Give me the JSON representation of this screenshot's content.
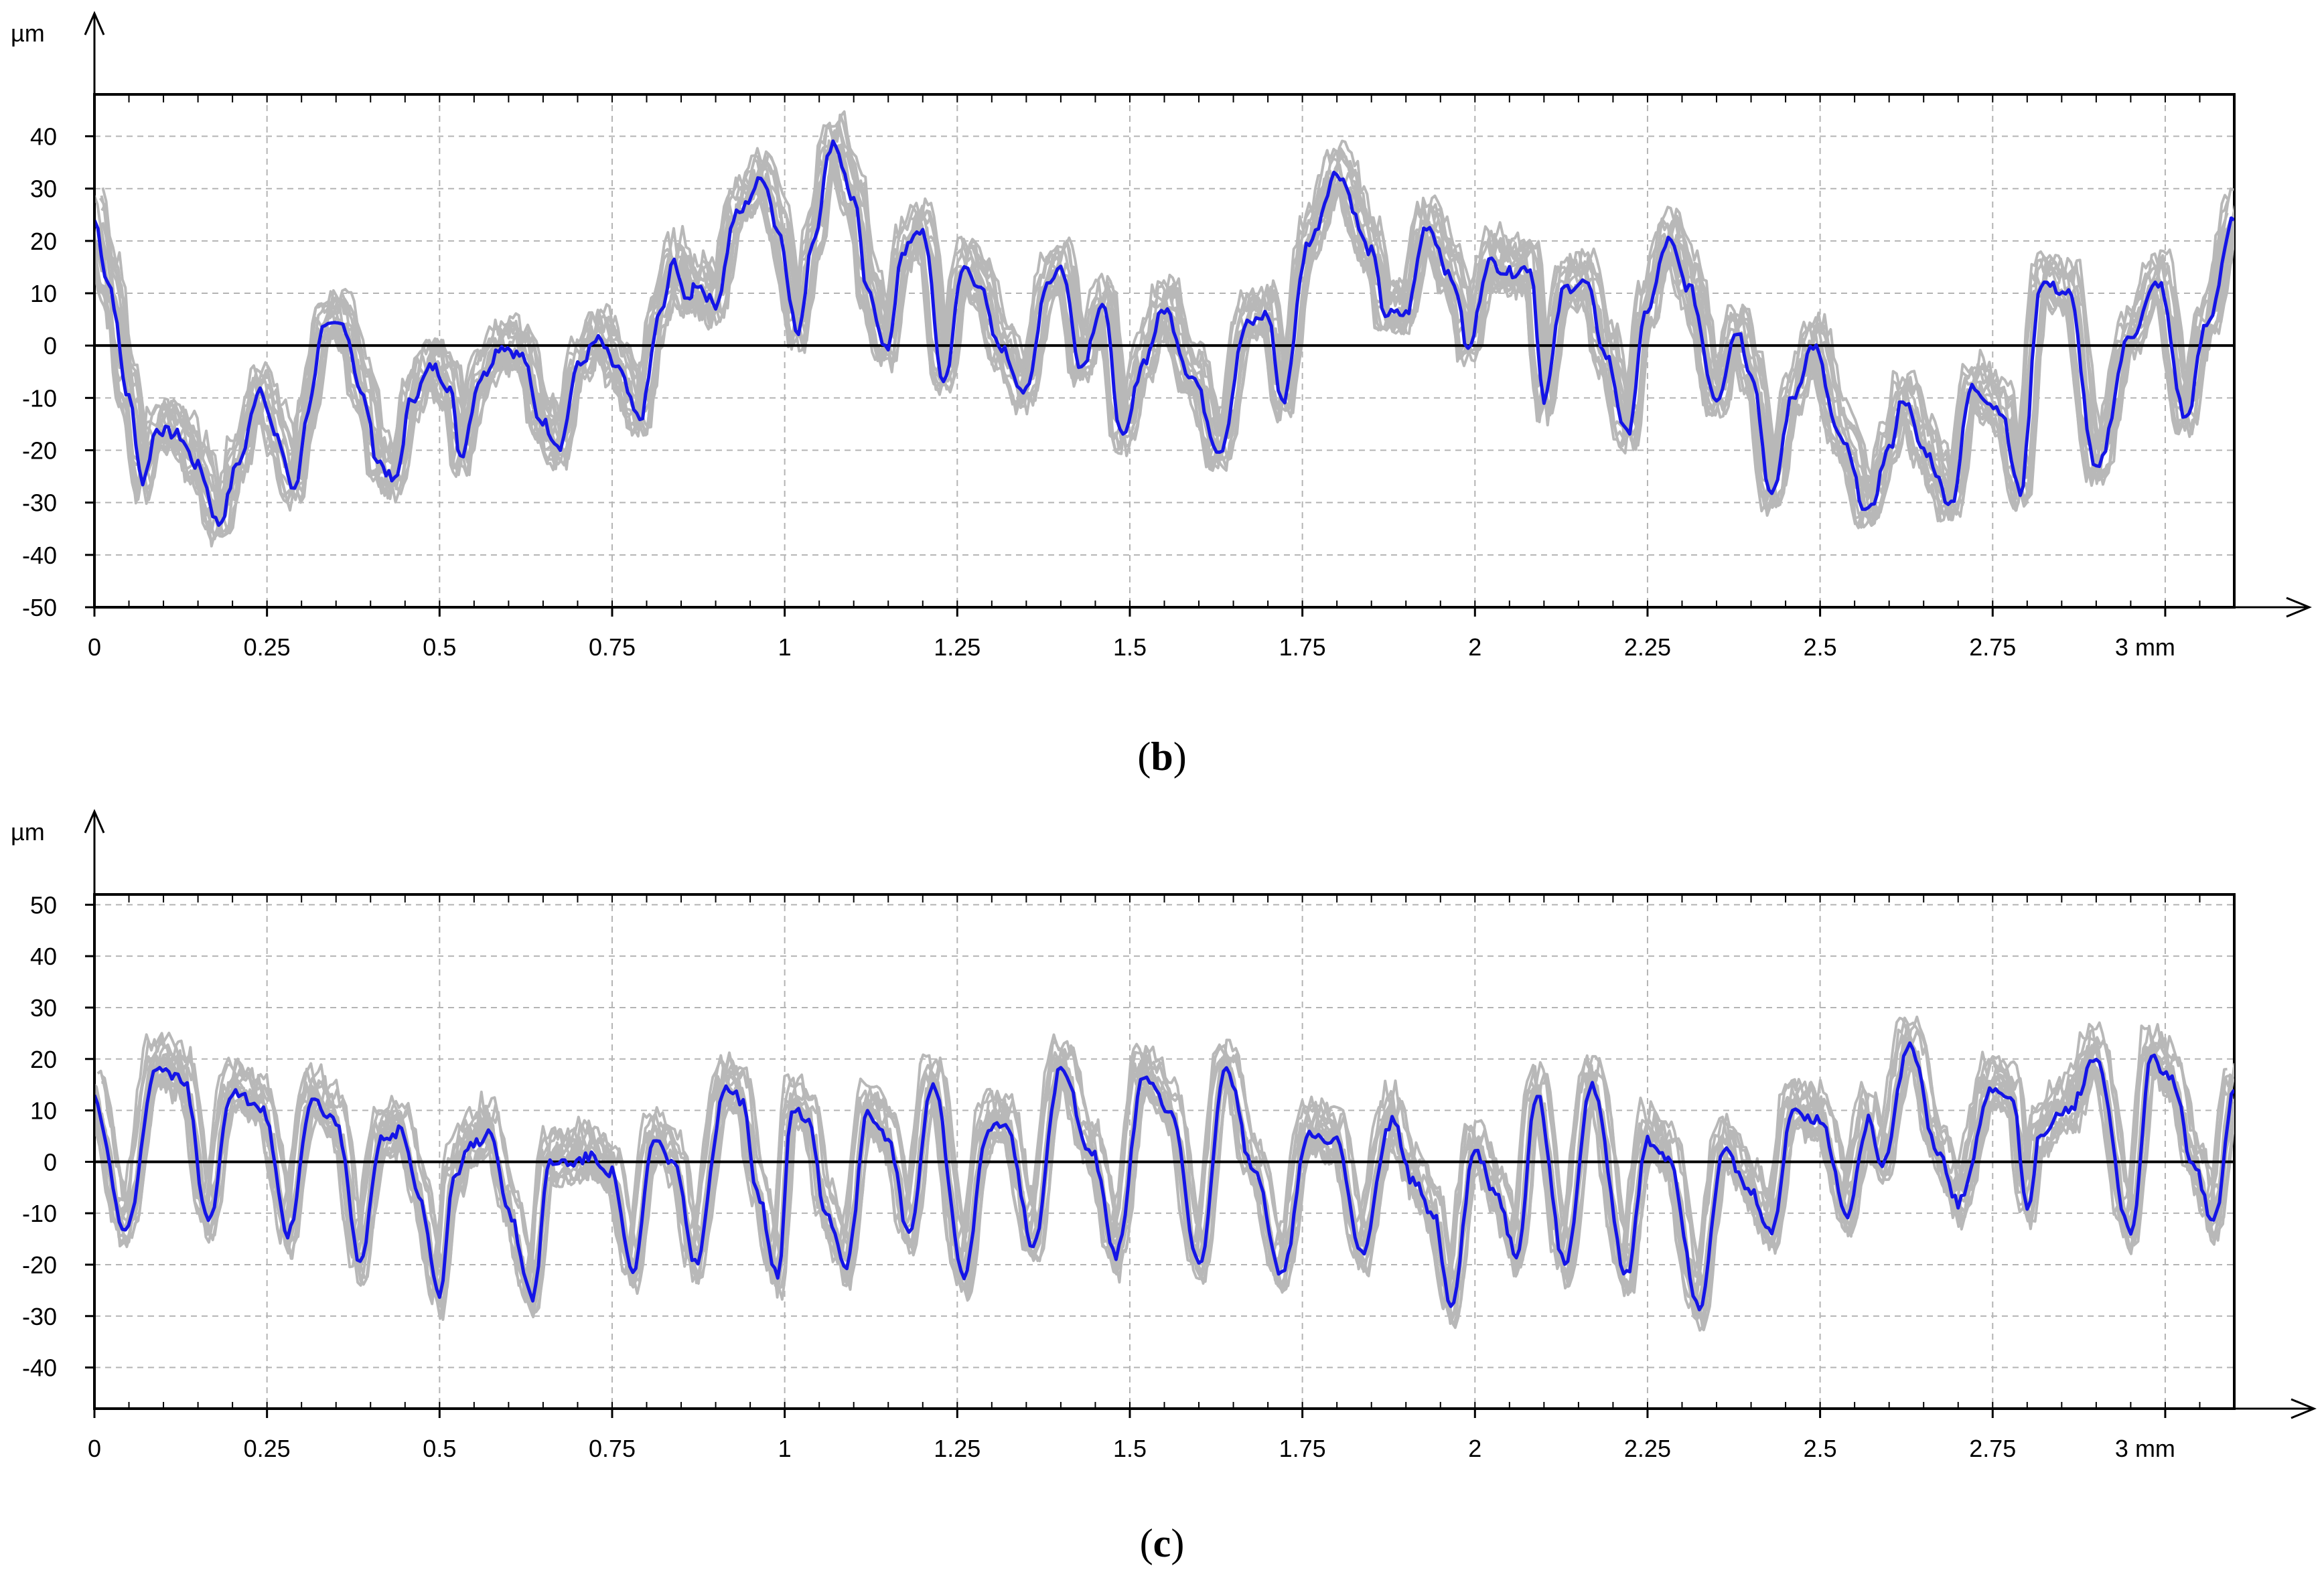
{
  "chart_data": [
    {
      "type": "line",
      "caption_open": "(",
      "caption_label": "b",
      "caption_close": ")",
      "ylabel": "µm",
      "xlabel": "mm",
      "xlim": [
        0,
        3.1
      ],
      "ylim": [
        -50,
        48
      ],
      "x_ticks": [
        "0",
        "0.25",
        "0.5",
        "0.75",
        "1",
        "1.25",
        "1.5",
        "1.75",
        "2",
        "2.25",
        "2.5",
        "2.75",
        "3 mm"
      ],
      "y_ticks": [
        "40",
        "30",
        "20",
        "10",
        "0",
        "-10",
        "-20",
        "-30",
        "-40",
        "-50"
      ],
      "grid": true,
      "colors": {
        "mean_line": "#1414e6",
        "band": "#b8b8b8",
        "zero_line": "#000000",
        "grid": "#b4b4b4"
      },
      "series": [
        {
          "role": "mean",
          "x": [
            0,
            0.02,
            0.05,
            0.07,
            0.09,
            0.12,
            0.15,
            0.18,
            0.21,
            0.24,
            0.265,
            0.29,
            0.31,
            0.33,
            0.36,
            0.39,
            0.41,
            0.435,
            0.46,
            0.49,
            0.515,
            0.53,
            0.56,
            0.59,
            0.62,
            0.645,
            0.675,
            0.7,
            0.73,
            0.755,
            0.79,
            0.82,
            0.84,
            0.86,
            0.87,
            0.9,
            0.93,
            0.97,
            0.99,
            1.02,
            1.04,
            1.07,
            1.1,
            1.12,
            1.15,
            1.17,
            1.2,
            1.23,
            1.26,
            1.28,
            1.31,
            1.35,
            1.38,
            1.4,
            1.43,
            1.46,
            1.49,
            1.52,
            1.55,
            1.59,
            1.63,
            1.67,
            1.7,
            1.72,
            1.76,
            1.8,
            1.85,
            1.87,
            1.9,
            1.93,
            1.97,
            1.99,
            2.02,
            2.05,
            2.08,
            2.1,
            2.13,
            2.16,
            2.19,
            2.22,
            2.25,
            2.28,
            2.31,
            2.35,
            2.38,
            2.4,
            2.43,
            2.46,
            2.49,
            2.53,
            2.57,
            2.6,
            2.62,
            2.65,
            2.69,
            2.72,
            2.76,
            2.79,
            2.82,
            2.86,
            2.9,
            2.95,
            2.99,
            3.03,
            3.06,
            3.1
          ],
          "y": [
            24,
            12,
            -10,
            -26,
            -16,
            -17,
            -23,
            -34,
            -22,
            -8,
            -18,
            -28,
            -12,
            3,
            4,
            -10,
            -22,
            -26,
            -10,
            -4,
            -8,
            -21,
            -6,
            0,
            -2,
            -14,
            -19,
            -4,
            1,
            -4,
            -14,
            6,
            16,
            8,
            12,
            8,
            25,
            32,
            22,
            2,
            20,
            39,
            28,
            10,
            -1,
            18,
            22,
            -7,
            15,
            12,
            0,
            -9,
            12,
            15,
            -4,
            8,
            -18,
            -3,
            7,
            -6,
            -20,
            4,
            6,
            -11,
            20,
            33,
            18,
            6,
            6,
            23,
            12,
            -1,
            16,
            14,
            15,
            -10,
            11,
            12,
            -2,
            -17,
            7,
            20,
            11,
            -10,
            3,
            -5,
            -29,
            -10,
            0,
            -18,
            -32,
            -20,
            -10,
            -20,
            -30,
            -8,
            -12,
            -28,
            12,
            10,
            -24,
            2,
            12,
            -14,
            4,
            24
          ]
        }
      ]
    },
    {
      "type": "line",
      "caption_open": "(",
      "caption_label": "c",
      "caption_close": ")",
      "ylabel": "µm",
      "xlabel": "mm",
      "xlim": [
        0,
        3.1
      ],
      "ylim": [
        -48,
        52
      ],
      "x_ticks": [
        "0",
        "0.25",
        "0.5",
        "0.75",
        "1",
        "1.25",
        "1.5",
        "1.75",
        "2",
        "2.25",
        "2.5",
        "2.75",
        "3 mm"
      ],
      "y_ticks": [
        "50",
        "40",
        "30",
        "20",
        "10",
        "0",
        "-10",
        "-20",
        "-30",
        "-40"
      ],
      "grid": true,
      "colors": {
        "mean_line": "#1414e6",
        "band": "#b8b8b8",
        "zero_line": "#000000",
        "grid": "#b4b4b4"
      },
      "series": [
        {
          "role": "mean",
          "x": [
            0,
            0.045,
            0.09,
            0.13,
            0.165,
            0.2,
            0.245,
            0.28,
            0.315,
            0.35,
            0.385,
            0.415,
            0.445,
            0.47,
            0.5,
            0.52,
            0.545,
            0.575,
            0.6,
            0.635,
            0.66,
            0.69,
            0.72,
            0.75,
            0.78,
            0.81,
            0.84,
            0.87,
            0.915,
            0.94,
            0.96,
            0.99,
            1.01,
            1.035,
            1.06,
            1.09,
            1.12,
            1.15,
            1.18,
            1.215,
            1.26,
            1.295,
            1.32,
            1.36,
            1.4,
            1.445,
            1.48,
            1.52,
            1.56,
            1.6,
            1.64,
            1.68,
            1.72,
            1.76,
            1.8,
            1.835,
            1.88,
            1.91,
            1.94,
            1.965,
            2.0,
            2.03,
            2.06,
            2.09,
            2.13,
            2.17,
            2.22,
            2.25,
            2.28,
            2.325,
            2.36,
            2.4,
            2.43,
            2.46,
            2.5,
            2.54,
            2.57,
            2.59,
            2.63,
            2.67,
            2.7,
            2.75,
            2.78,
            2.8,
            2.82,
            2.86,
            2.9,
            2.95,
            2.98,
            3.01,
            3.04,
            3.07,
            3.1
          ],
          "y": [
            12,
            -14,
            18,
            16,
            -12,
            14,
            10,
            -14,
            12,
            8,
            -20,
            4,
            6,
            -6,
            -26,
            -4,
            3,
            6,
            -10,
            -26,
            0,
            0,
            1,
            -2,
            -22,
            4,
            0,
            -20,
            14,
            12,
            -6,
            -22,
            10,
            8,
            -10,
            -20,
            10,
            4,
            -14,
            15,
            -22,
            6,
            8,
            -16,
            18,
            2,
            -18,
            16,
            10,
            -20,
            18,
            -2,
            -22,
            6,
            4,
            -18,
            8,
            -4,
            -10,
            -28,
            2,
            -6,
            -18,
            13,
            -20,
            15,
            -22,
            4,
            1,
            -28,
            2,
            -6,
            -14,
            10,
            8,
            -10,
            8,
            0,
            23,
            2,
            -8,
            14,
            12,
            -10,
            6,
            10,
            20,
            -14,
            20,
            16,
            0,
            -12,
            14
          ]
        }
      ]
    }
  ]
}
